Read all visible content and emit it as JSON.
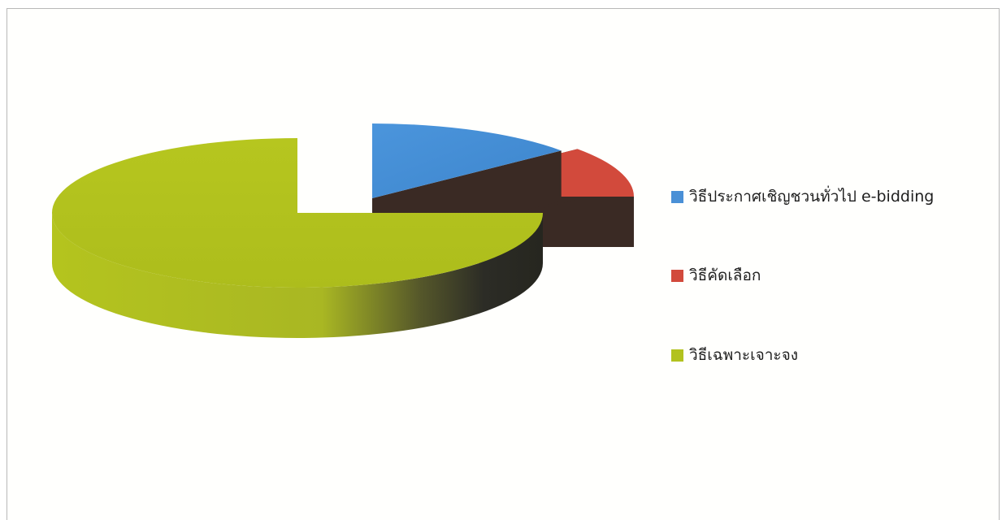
{
  "chart_data": {
    "type": "pie",
    "title": "",
    "three_d": true,
    "exploded": true,
    "legend_position": "right",
    "categories": [
      "วิธีประกาศเชิญชวนทั่วไป e-bidding",
      "วิธีคัดเลือก",
      "วิธีเฉพาะเจาะจง"
    ],
    "values": [
      14,
      11,
      75
    ],
    "colors": [
      "#4a90d6",
      "#d24a3c",
      "#b2c21e"
    ],
    "side_colors": [
      "#3a2a24",
      "#3a2a24",
      "#2e2e26"
    ]
  }
}
